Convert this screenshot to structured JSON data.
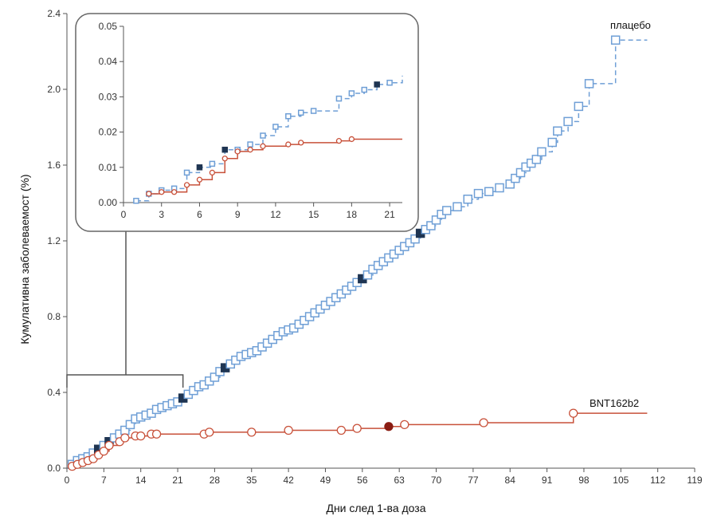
{
  "chart_data": [
    {
      "type": "line",
      "xlabel": "Дни след 1-ва доза",
      "ylabel": "Кумулативна заболеваемост (%)",
      "xlim": [
        0,
        119
      ],
      "ylim": [
        0,
        2.4
      ],
      "x_ticks": [
        "0",
        "7",
        "14",
        "21",
        "28",
        "35",
        "42",
        "49",
        "56",
        "63",
        "70",
        "77",
        "84",
        "91",
        "98",
        "105",
        "112",
        "119"
      ],
      "y_ticks": [
        "0.0",
        "0.4",
        "0.8",
        "1.2",
        "1.6",
        "2.0",
        "2.4"
      ],
      "step": true,
      "colors": {
        "placebo": "#6f9fd6",
        "bnt": "#c8513a",
        "placebo_filled": "#1f3552",
        "bnt_filled": "#8a1c12",
        "bracket": "#555555"
      },
      "series": [
        {
          "name": "плацебо",
          "line_style": "dashed",
          "marker": "square",
          "points": [
            [
              1,
              0.02
            ],
            [
              2,
              0.04
            ],
            [
              3,
              0.05
            ],
            [
              4,
              0.06
            ],
            [
              5,
              0.08
            ],
            [
              6,
              0.1
            ],
            [
              7,
              0.12
            ],
            [
              8,
              0.14
            ],
            [
              9,
              0.16
            ],
            [
              10,
              0.18
            ],
            [
              11,
              0.2
            ],
            [
              12,
              0.23
            ],
            [
              13,
              0.26
            ],
            [
              14,
              0.27
            ],
            [
              15,
              0.28
            ],
            [
              16,
              0.29
            ],
            [
              17,
              0.31
            ],
            [
              18,
              0.32
            ],
            [
              19,
              0.33
            ],
            [
              20,
              0.34
            ],
            [
              21,
              0.35
            ],
            [
              22,
              0.37
            ],
            [
              23,
              0.39
            ],
            [
              24,
              0.41
            ],
            [
              25,
              0.43
            ],
            [
              26,
              0.44
            ],
            [
              27,
              0.46
            ],
            [
              28,
              0.48
            ],
            [
              29,
              0.51
            ],
            [
              30,
              0.53
            ],
            [
              31,
              0.55
            ],
            [
              32,
              0.57
            ],
            [
              33,
              0.59
            ],
            [
              34,
              0.6
            ],
            [
              35,
              0.61
            ],
            [
              36,
              0.62
            ],
            [
              37,
              0.64
            ],
            [
              38,
              0.66
            ],
            [
              39,
              0.68
            ],
            [
              40,
              0.7
            ],
            [
              41,
              0.72
            ],
            [
              42,
              0.73
            ],
            [
              43,
              0.74
            ],
            [
              44,
              0.76
            ],
            [
              45,
              0.78
            ],
            [
              46,
              0.8
            ],
            [
              47,
              0.82
            ],
            [
              48,
              0.84
            ],
            [
              49,
              0.86
            ],
            [
              50,
              0.88
            ],
            [
              51,
              0.9
            ],
            [
              52,
              0.92
            ],
            [
              53,
              0.94
            ],
            [
              54,
              0.96
            ],
            [
              55,
              0.98
            ],
            [
              56,
              1.0
            ],
            [
              57,
              1.02
            ],
            [
              58,
              1.05
            ],
            [
              59,
              1.07
            ],
            [
              60,
              1.09
            ],
            [
              61,
              1.11
            ],
            [
              62,
              1.13
            ],
            [
              63,
              1.15
            ],
            [
              64,
              1.17
            ],
            [
              65,
              1.19
            ],
            [
              66,
              1.21
            ],
            [
              67,
              1.24
            ],
            [
              68,
              1.26
            ],
            [
              69,
              1.28
            ],
            [
              70,
              1.31
            ],
            [
              71,
              1.34
            ],
            [
              72,
              1.36
            ],
            [
              74,
              1.38
            ],
            [
              76,
              1.42
            ],
            [
              78,
              1.45
            ],
            [
              80,
              1.46
            ],
            [
              82,
              1.48
            ],
            [
              84,
              1.5
            ],
            [
              85,
              1.53
            ],
            [
              86,
              1.56
            ],
            [
              87,
              1.59
            ],
            [
              88,
              1.61
            ],
            [
              89,
              1.63
            ],
            [
              90,
              1.67
            ],
            [
              92,
              1.72
            ],
            [
              93,
              1.78
            ],
            [
              95,
              1.83
            ],
            [
              97,
              1.91
            ],
            [
              99,
              2.03
            ],
            [
              104,
              2.26
            ],
            [
              110,
              2.26
            ]
          ],
          "filled_at": [
            6,
            8,
            22,
            30,
            56,
            67
          ]
        },
        {
          "name": "BNT162b2",
          "line_style": "solid",
          "marker": "circle",
          "points": [
            [
              1,
              0.01
            ],
            [
              2,
              0.02
            ],
            [
              3,
              0.03
            ],
            [
              4,
              0.04
            ],
            [
              5,
              0.05
            ],
            [
              6,
              0.07
            ],
            [
              7,
              0.09
            ],
            [
              8,
              0.12
            ],
            [
              10,
              0.14
            ],
            [
              11,
              0.16
            ],
            [
              13,
              0.17
            ],
            [
              14,
              0.17
            ],
            [
              16,
              0.18
            ],
            [
              17,
              0.18
            ],
            [
              26,
              0.18
            ],
            [
              27,
              0.19
            ],
            [
              35,
              0.19
            ],
            [
              42,
              0.2
            ],
            [
              52,
              0.2
            ],
            [
              55,
              0.21
            ],
            [
              61,
              0.22
            ],
            [
              64,
              0.23
            ],
            [
              79,
              0.24
            ],
            [
              96,
              0.29
            ],
            [
              110,
              0.29
            ]
          ],
          "filled_at": [
            61
          ]
        }
      ]
    },
    {
      "type": "line",
      "xlim": [
        0,
        22
      ],
      "ylim": [
        0,
        0.05
      ],
      "x_ticks": [
        "0",
        "3",
        "6",
        "9",
        "12",
        "15",
        "18",
        "21"
      ],
      "y_ticks": [
        "0.00",
        "0.01",
        "0.02",
        "0.03",
        "0.04",
        "0.05"
      ],
      "step": true,
      "series": [
        {
          "name": "плацебо",
          "line_style": "dashed",
          "marker": "square",
          "points": [
            [
              1,
              0.0005
            ],
            [
              2,
              0.0025
            ],
            [
              3,
              0.0035
            ],
            [
              4,
              0.004
            ],
            [
              5,
              0.0085
            ],
            [
              6,
              0.01
            ],
            [
              7,
              0.011
            ],
            [
              8,
              0.015
            ],
            [
              9,
              0.015
            ],
            [
              10,
              0.0165
            ],
            [
              11,
              0.019
            ],
            [
              12,
              0.0215
            ],
            [
              13,
              0.0245
            ],
            [
              14,
              0.0255
            ],
            [
              15,
              0.026
            ],
            [
              17,
              0.0295
            ],
            [
              18,
              0.031
            ],
            [
              19,
              0.032
            ],
            [
              20,
              0.0335
            ],
            [
              21,
              0.034
            ],
            [
              22,
              0.036
            ]
          ],
          "filled_at": [
            6,
            8,
            20,
            22
          ]
        },
        {
          "name": "BNT162b2",
          "line_style": "solid",
          "marker": "circle",
          "points": [
            [
              2,
              0.0025
            ],
            [
              3,
              0.003
            ],
            [
              4,
              0.003
            ],
            [
              5,
              0.005
            ],
            [
              6,
              0.0065
            ],
            [
              7,
              0.0085
            ],
            [
              8,
              0.0125
            ],
            [
              9,
              0.0145
            ],
            [
              10,
              0.015
            ],
            [
              11,
              0.016
            ],
            [
              13,
              0.0165
            ],
            [
              14,
              0.017
            ],
            [
              17,
              0.0175
            ],
            [
              18,
              0.018
            ],
            [
              22,
              0.018
            ]
          ],
          "filled_at": []
        }
      ]
    }
  ]
}
